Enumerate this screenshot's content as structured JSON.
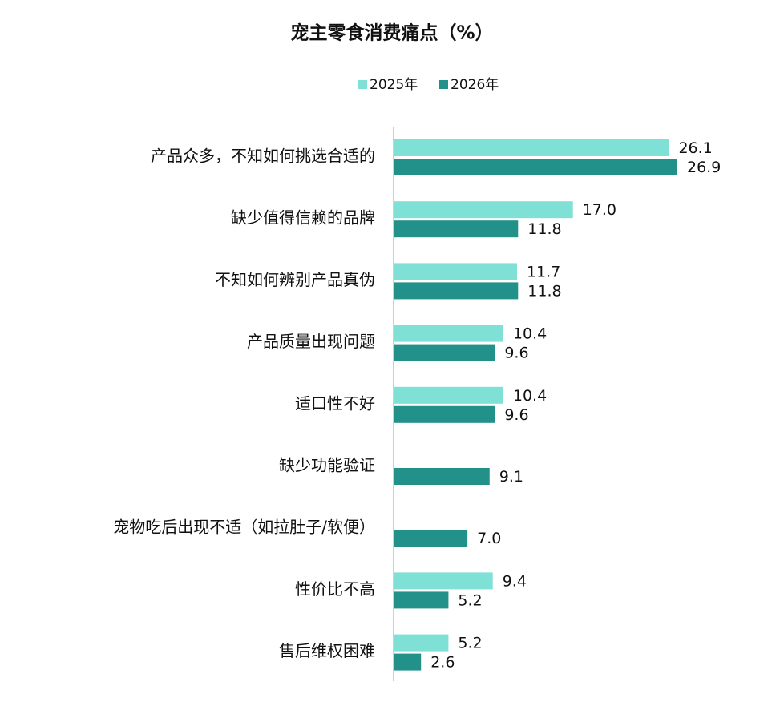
{
  "chart_data": {
    "type": "bar",
    "orientation": "horizontal",
    "title": "宠主零食消费痛点（%）",
    "categories": [
      "产品众多，不知如何挑选合适的",
      "缺少值得信赖的品牌",
      "不知如何辨别产品真伪",
      "产品质量出现问题",
      "适口性不好",
      "缺少功能验证",
      "宠物吃后出现不适（如拉肚子/软便）",
      "性价比不高",
      "售后维权困难"
    ],
    "series": [
      {
        "name": "2025年",
        "color": "#7fe0d6",
        "values": [
          26.1,
          17.0,
          11.7,
          10.4,
          10.4,
          null,
          null,
          9.4,
          5.2
        ],
        "value_labels": [
          "26.1",
          "17.0",
          "11.7",
          "10.4",
          "10.4",
          null,
          null,
          "9.4",
          "5.2"
        ]
      },
      {
        "name": "2026年",
        "color": "#22918a",
        "values": [
          26.9,
          11.8,
          11.8,
          9.6,
          9.6,
          9.1,
          7.0,
          5.2,
          2.6
        ],
        "value_labels": [
          "26.9",
          "11.8",
          "11.8",
          "9.6",
          "9.6",
          "9.1",
          "7.0",
          "5.2",
          "2.6"
        ]
      }
    ],
    "legend": "top"
  }
}
